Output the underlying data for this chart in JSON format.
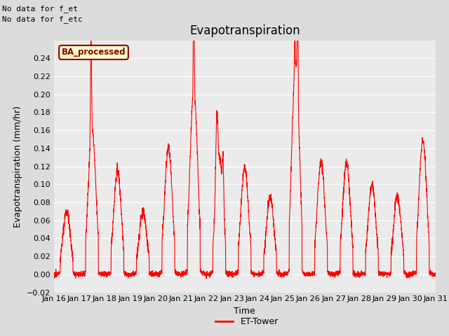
{
  "title": "Evapotranspiration",
  "ylabel": "Evapotranspiration (mm/hr)",
  "xlabel": "Time",
  "ylim": [
    -0.02,
    0.26
  ],
  "yticks": [
    -0.02,
    0.0,
    0.02,
    0.04,
    0.06,
    0.08,
    0.1,
    0.12,
    0.14,
    0.16,
    0.18,
    0.2,
    0.22,
    0.24
  ],
  "line_color": "red",
  "line_width": 0.8,
  "bg_color": "#dcdcdc",
  "plot_bg_color": "#ebebeb",
  "legend_label": "ET-Tower",
  "legend_line_color": "red",
  "top_left_text1": "No data for f_et",
  "top_left_text2": "No data for f_etc",
  "box_label": "BA_processed",
  "box_facecolor": "#ffffcc",
  "box_edgecolor": "#8B0000",
  "box_text_color": "#8B0000",
  "xtick_labels": [
    "Jan 16",
    "Jan 17",
    "Jan 18",
    "Jan 19",
    "Jan 20",
    "Jan 21",
    "Jan 22",
    "Jan 23",
    "Jan 24",
    "Jan 25",
    "Jan 26",
    "Jan 27",
    "Jan 28",
    "Jan 29",
    "Jan 30",
    "Jan 31"
  ],
  "title_fontsize": 12,
  "label_fontsize": 9,
  "tick_fontsize": 8,
  "n_points": 2880
}
